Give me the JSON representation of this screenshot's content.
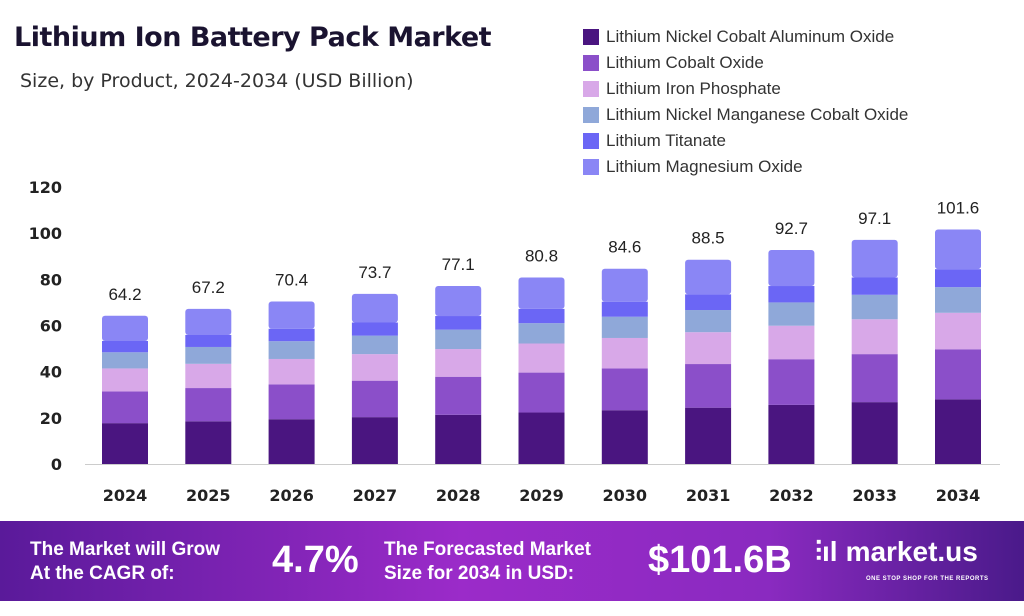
{
  "chart_data": {
    "type": "bar",
    "stacked": true,
    "title": "Lithium Ion Battery Pack Market",
    "subtitle": "Size, by Product, 2024-2034 (USD Billion)",
    "categories": [
      "2024",
      "2025",
      "2026",
      "2027",
      "2028",
      "2029",
      "2030",
      "2031",
      "2032",
      "2033",
      "2034"
    ],
    "totals": [
      "64.2",
      "67.2",
      "70.4",
      "73.7",
      "77.1",
      "80.8",
      "84.6",
      "88.5",
      "92.7",
      "97.1",
      "101.6"
    ],
    "series": [
      {
        "name": "Lithium Nickel Cobalt Aluminum Oxide",
        "color": "#4a1580",
        "values": [
          17.7,
          18.5,
          19.4,
          20.3,
          21.3,
          22.3,
          23.3,
          24.4,
          25.6,
          26.8,
          28.0
        ]
      },
      {
        "name": "Lithium Cobalt Oxide",
        "color": "#8b4fc9",
        "values": [
          13.7,
          14.4,
          15.1,
          15.8,
          16.5,
          17.3,
          18.1,
          18.9,
          19.8,
          20.8,
          21.7
        ]
      },
      {
        "name": "Lithium Iron Phosphate",
        "color": "#d8a8e8",
        "values": [
          10.0,
          10.5,
          11.0,
          11.5,
          12.0,
          12.6,
          13.2,
          13.8,
          14.5,
          15.1,
          15.8
        ]
      },
      {
        "name": "Lithium Nickel Manganese Cobalt Oxide",
        "color": "#8fa8d9",
        "values": [
          7.0,
          7.3,
          7.7,
          8.0,
          8.4,
          8.8,
          9.2,
          9.6,
          10.1,
          10.6,
          11.1
        ]
      },
      {
        "name": "Lithium Titanate",
        "color": "#6b66f5",
        "values": [
          4.9,
          5.2,
          5.4,
          5.7,
          5.9,
          6.2,
          6.5,
          6.8,
          7.1,
          7.5,
          7.8
        ]
      },
      {
        "name": "Lithium Magnesium Oxide",
        "color": "#8a86f5",
        "values": [
          10.9,
          11.3,
          11.8,
          12.4,
          13.0,
          13.6,
          14.3,
          15.0,
          15.6,
          16.3,
          17.2
        ]
      }
    ],
    "yticks": [
      "0",
      "20",
      "40",
      "60",
      "80",
      "100",
      "120"
    ],
    "ylim": [
      0,
      120
    ],
    "grid": false,
    "legend": "top-right"
  },
  "footer": {
    "cagr_label_1": "The Market will Grow",
    "cagr_label_2": "At the CAGR of:",
    "cagr_value": "4.7%",
    "forecast_label_1": "The Forecasted Market",
    "forecast_label_2": "Size for 2034 in USD:",
    "forecast_value": "$101.6B",
    "logo_text": "market.us",
    "logo_tagline": "ONE STOP SHOP FOR THE REPORTS"
  }
}
